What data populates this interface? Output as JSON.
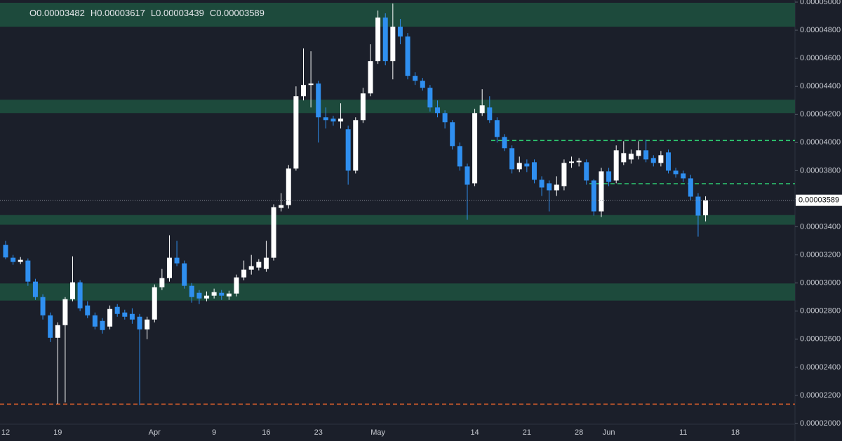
{
  "chart_data": {
    "type": "candlestick",
    "legend_labels": [
      "O",
      "H",
      "L",
      "C"
    ],
    "categories": [
      "12",
      null,
      null,
      null,
      null,
      null,
      null,
      "19",
      null,
      null,
      null,
      null,
      null,
      null,
      null,
      null,
      null,
      null,
      null,
      null,
      "Apr",
      null,
      null,
      null,
      null,
      null,
      null,
      null,
      "9",
      null,
      null,
      null,
      null,
      null,
      null,
      "16",
      null,
      null,
      null,
      null,
      null,
      null,
      "23",
      null,
      null,
      null,
      null,
      null,
      null,
      null,
      "May",
      null,
      null,
      null,
      null,
      null,
      null,
      null,
      null,
      null,
      null,
      null,
      null,
      "14",
      null,
      null,
      null,
      null,
      null,
      null,
      "21",
      null,
      null,
      null,
      null,
      null,
      null,
      "28",
      null,
      null,
      null,
      "Jun",
      null,
      null,
      null,
      null,
      null,
      null,
      null,
      null,
      null,
      "11",
      null,
      null,
      null,
      null,
      null,
      null,
      "18"
    ],
    "open": [
      3.272e-05,
      3.18e-05,
      3.15e-05,
      3.16e-05,
      3.01e-05,
      2.9e-05,
      2.77e-05,
      2.61e-05,
      2.7e-05,
      2.885e-05,
      3.005e-05,
      2.84e-05,
      2.77e-05,
      2.73e-05,
      2.69e-05,
      2.83e-05,
      2.79e-05,
      2.78e-05,
      2.76e-05,
      2.67e-05,
      2.74e-05,
      2.97e-05,
      3.035e-05,
      3.18e-05,
      3.14e-05,
      2.98e-05,
      2.93e-05,
      2.89e-05,
      2.91e-05,
      2.93e-05,
      2.905e-05,
      2.925e-05,
      3.04e-05,
      3.095e-05,
      3.11e-05,
      3.1e-05,
      3.18e-05,
      3.535e-05,
      3.555e-05,
      3.815e-05,
      4.33e-05,
      4.41e-05,
      4.42e-05,
      4.18e-05,
      4.17e-05,
      4.15e-05,
      4.095e-05,
      3.8e-05,
      4.16e-05,
      4.35e-05,
      4.58e-05,
      4.89e-05,
      4.58e-05,
      4.825e-05,
      4.755e-05,
      4.475e-05,
      4.44e-05,
      4.39e-05,
      4.25e-05,
      4.21e-05,
      4.145e-05,
      3.975e-05,
      3.83e-05,
      3.71e-05,
      4.21e-05,
      4.25e-05,
      4.16e-05,
      4.04e-05,
      3.96e-05,
      3.81e-05,
      3.85e-05,
      3.86e-05,
      3.735e-05,
      3.71e-05,
      3.66e-05,
      3.69e-05,
      3.855e-05,
      3.86e-05,
      3.86e-05,
      3.73e-05,
      3.51e-05,
      3.795e-05,
      3.73e-05,
      3.86e-05,
      3.88e-05,
      3.905e-05,
      3.945e-05,
      3.89e-05,
      3.855e-05,
      3.93e-05,
      3.8e-05,
      3.78e-05,
      3.745e-05,
      3.615e-05,
      3.482e-05,
      null,
      null,
      null,
      null
    ],
    "high": [
      3.3e-05,
      3.2e-05,
      3.185e-05,
      3.175e-05,
      3.03e-05,
      2.92e-05,
      2.79e-05,
      2.72e-05,
      2.9e-05,
      3.19e-05,
      3.02e-05,
      2.87e-05,
      2.79e-05,
      2.75e-05,
      2.84e-05,
      2.85e-05,
      2.81e-05,
      2.82e-05,
      2.78e-05,
      2.76e-05,
      2.99e-05,
      3.1e-05,
      3.34e-05,
      3.3e-05,
      3.16e-05,
      3e-05,
      2.95e-05,
      2.94e-05,
      2.96e-05,
      2.95e-05,
      2.945e-05,
      3.06e-05,
      3.16e-05,
      3.2e-05,
      3.17e-05,
      3.3e-05,
      3.56e-05,
      3.64e-05,
      3.84e-05,
      4.4e-05,
      4.67e-05,
      4.65e-05,
      4.44e-05,
      4.25e-05,
      4.19e-05,
      4.28e-05,
      4.12e-05,
      4.18e-05,
      4.39e-05,
      4.7e-05,
      4.94e-05,
      4.92e-05,
      4.99e-05,
      4.88e-05,
      4.78e-05,
      4.5e-05,
      4.46e-05,
      4.41e-05,
      4.3e-05,
      4.23e-05,
      4.16e-05,
      4e-05,
      3.85e-05,
      4.24e-05,
      4.38e-05,
      4.33e-05,
      4.18e-05,
      4.06e-05,
      3.98e-05,
      3.9e-05,
      3.88e-05,
      3.88e-05,
      3.76e-05,
      3.73e-05,
      3.76e-05,
      3.88e-05,
      3.9e-05,
      3.89e-05,
      3.88e-05,
      3.74e-05,
      3.82e-05,
      3.82e-05,
      3.98e-05,
      4.01e-05,
      3.95e-05,
      4.01e-05,
      4.02e-05,
      3.91e-05,
      3.94e-05,
      3.95e-05,
      3.82e-05,
      3.8e-05,
      3.77e-05,
      3.64e-05,
      3.617e-05,
      null,
      null,
      null,
      null
    ],
    "low": [
      3.17e-05,
      3.13e-05,
      3.135e-05,
      2.98e-05,
      2.88e-05,
      2.74e-05,
      2.58e-05,
      2.14e-05,
      2.15e-05,
      2.87e-05,
      2.8e-05,
      2.75e-05,
      2.67e-05,
      2.64e-05,
      2.67e-05,
      2.76e-05,
      2.74e-05,
      2.71e-05,
      2.13e-05,
      2.6e-05,
      2.72e-05,
      2.95e-05,
      3.01e-05,
      3.12e-05,
      2.96e-05,
      2.86e-05,
      2.85e-05,
      2.87e-05,
      2.89e-05,
      2.88e-05,
      2.88e-05,
      2.905e-05,
      3.02e-05,
      3.06e-05,
      3.09e-05,
      3.08e-05,
      3.16e-05,
      3.51e-05,
      3.53e-05,
      3.8e-05,
      4.3e-05,
      4.25e-05,
      4e-05,
      4.1e-05,
      4.12e-05,
      4.1e-05,
      3.7e-05,
      3.78e-05,
      4.14e-05,
      4.33e-05,
      4.56e-05,
      4.55e-05,
      4.45e-05,
      4.7e-05,
      4.45e-05,
      4.41e-05,
      4.37e-05,
      4.22e-05,
      4.18e-05,
      4.1e-05,
      3.95e-05,
      3.8e-05,
      3.45e-05,
      3.69e-05,
      4.19e-05,
      4.14e-05,
      4e-05,
      3.94e-05,
      3.78e-05,
      3.79e-05,
      3.79e-05,
      3.71e-05,
      3.62e-05,
      3.51e-05,
      3.62e-05,
      3.66e-05,
      3.82e-05,
      3.83e-05,
      3.7e-05,
      3.48e-05,
      3.47e-05,
      3.69e-05,
      3.71e-05,
      3.84e-05,
      3.85e-05,
      3.88e-05,
      3.86e-05,
      3.83e-05,
      3.83e-05,
      3.78e-05,
      3.75e-05,
      3.72e-05,
      3.59e-05,
      3.33e-05,
      3.439e-05,
      null,
      null,
      null,
      null
    ],
    "close": [
      3.182e-05,
      3.15e-05,
      3.165e-05,
      3.01e-05,
      2.9e-05,
      2.77e-05,
      2.61e-05,
      2.7e-05,
      2.885e-05,
      3.005e-05,
      2.82e-05,
      2.77e-05,
      2.69e-05,
      2.665e-05,
      2.815e-05,
      2.78e-05,
      2.76e-05,
      2.74e-05,
      2.67e-05,
      2.74e-05,
      2.97e-05,
      3.035e-05,
      3.18e-05,
      3.14e-05,
      2.98e-05,
      2.9e-05,
      2.89e-05,
      2.91e-05,
      2.935e-05,
      2.91e-05,
      2.925e-05,
      3.04e-05,
      3.095e-05,
      3.12e-05,
      3.15e-05,
      3.18e-05,
      3.54e-05,
      3.555e-05,
      3.815e-05,
      4.33e-05,
      4.41e-05,
      4.42e-05,
      4.18e-05,
      4.16e-05,
      4.15e-05,
      4.17e-05,
      3.8e-05,
      4.16e-05,
      4.35e-05,
      4.58e-05,
      4.89e-05,
      4.58e-05,
      4.825e-05,
      4.755e-05,
      4.475e-05,
      4.44e-05,
      4.39e-05,
      4.25e-05,
      4.21e-05,
      4.145e-05,
      3.975e-05,
      3.83e-05,
      3.7e-05,
      4.21e-05,
      4.265e-05,
      4.16e-05,
      4.04e-05,
      3.96e-05,
      3.81e-05,
      3.855e-05,
      3.83e-05,
      3.735e-05,
      3.68e-05,
      3.66e-05,
      3.7e-05,
      3.855e-05,
      3.865e-05,
      3.87e-05,
      3.73e-05,
      3.51e-05,
      3.795e-05,
      3.72e-05,
      3.945e-05,
      3.925e-05,
      3.92e-05,
      3.945e-05,
      3.88e-05,
      3.855e-05,
      3.91e-05,
      3.8e-05,
      3.775e-05,
      3.745e-05,
      3.615e-05,
      3.48e-05,
      3.589e-05,
      null,
      null,
      null,
      null
    ],
    "up_color": "#ffffff",
    "down_color": "#2f8ff0",
    "zones": [
      [
        4.825e-05,
        4.995e-05
      ],
      [
        4.21e-05,
        4.305e-05
      ],
      [
        3.415e-05,
        3.484e-05
      ],
      [
        2.875e-05,
        2.997e-05
      ]
    ],
    "zone_color": "#1d4a3c",
    "levels": [
      {
        "value": 4.015e-05,
        "color": "#2ecc71"
      },
      {
        "value": 3.707e-05,
        "color": "#2ecc71"
      },
      {
        "value": 2.138e-05,
        "color": "#e8642c"
      }
    ],
    "ylim": [
      1.995e-05,
      5.015e-05
    ],
    "yticks": [
      {
        "value": 5e-05,
        "label": "0.00005000"
      },
      {
        "value": 4.8e-05,
        "label": "0.00004800"
      },
      {
        "value": 4.6e-05,
        "label": "0.00004600"
      },
      {
        "value": 4.4e-05,
        "label": "0.00004400"
      },
      {
        "value": 4.2e-05,
        "label": "0.00004200"
      },
      {
        "value": 4e-05,
        "label": "0.00004000"
      },
      {
        "value": 3.8e-05,
        "label": "0.00003800"
      },
      {
        "value": 3.6e-05,
        "label": "0.00003600"
      },
      {
        "value": 3.4e-05,
        "label": "0.00003400"
      },
      {
        "value": 3.2e-05,
        "label": "0.00003200"
      },
      {
        "value": 3e-05,
        "label": "0.00003000"
      },
      {
        "value": 2.8e-05,
        "label": "0.00002800"
      },
      {
        "value": 2.6e-05,
        "label": "0.00002600"
      },
      {
        "value": 2.4e-05,
        "label": "0.00002400"
      },
      {
        "value": 2.2e-05,
        "label": "0.00002200"
      },
      {
        "value": 2e-05,
        "label": "0.00002000"
      }
    ],
    "grid": false
  }
}
